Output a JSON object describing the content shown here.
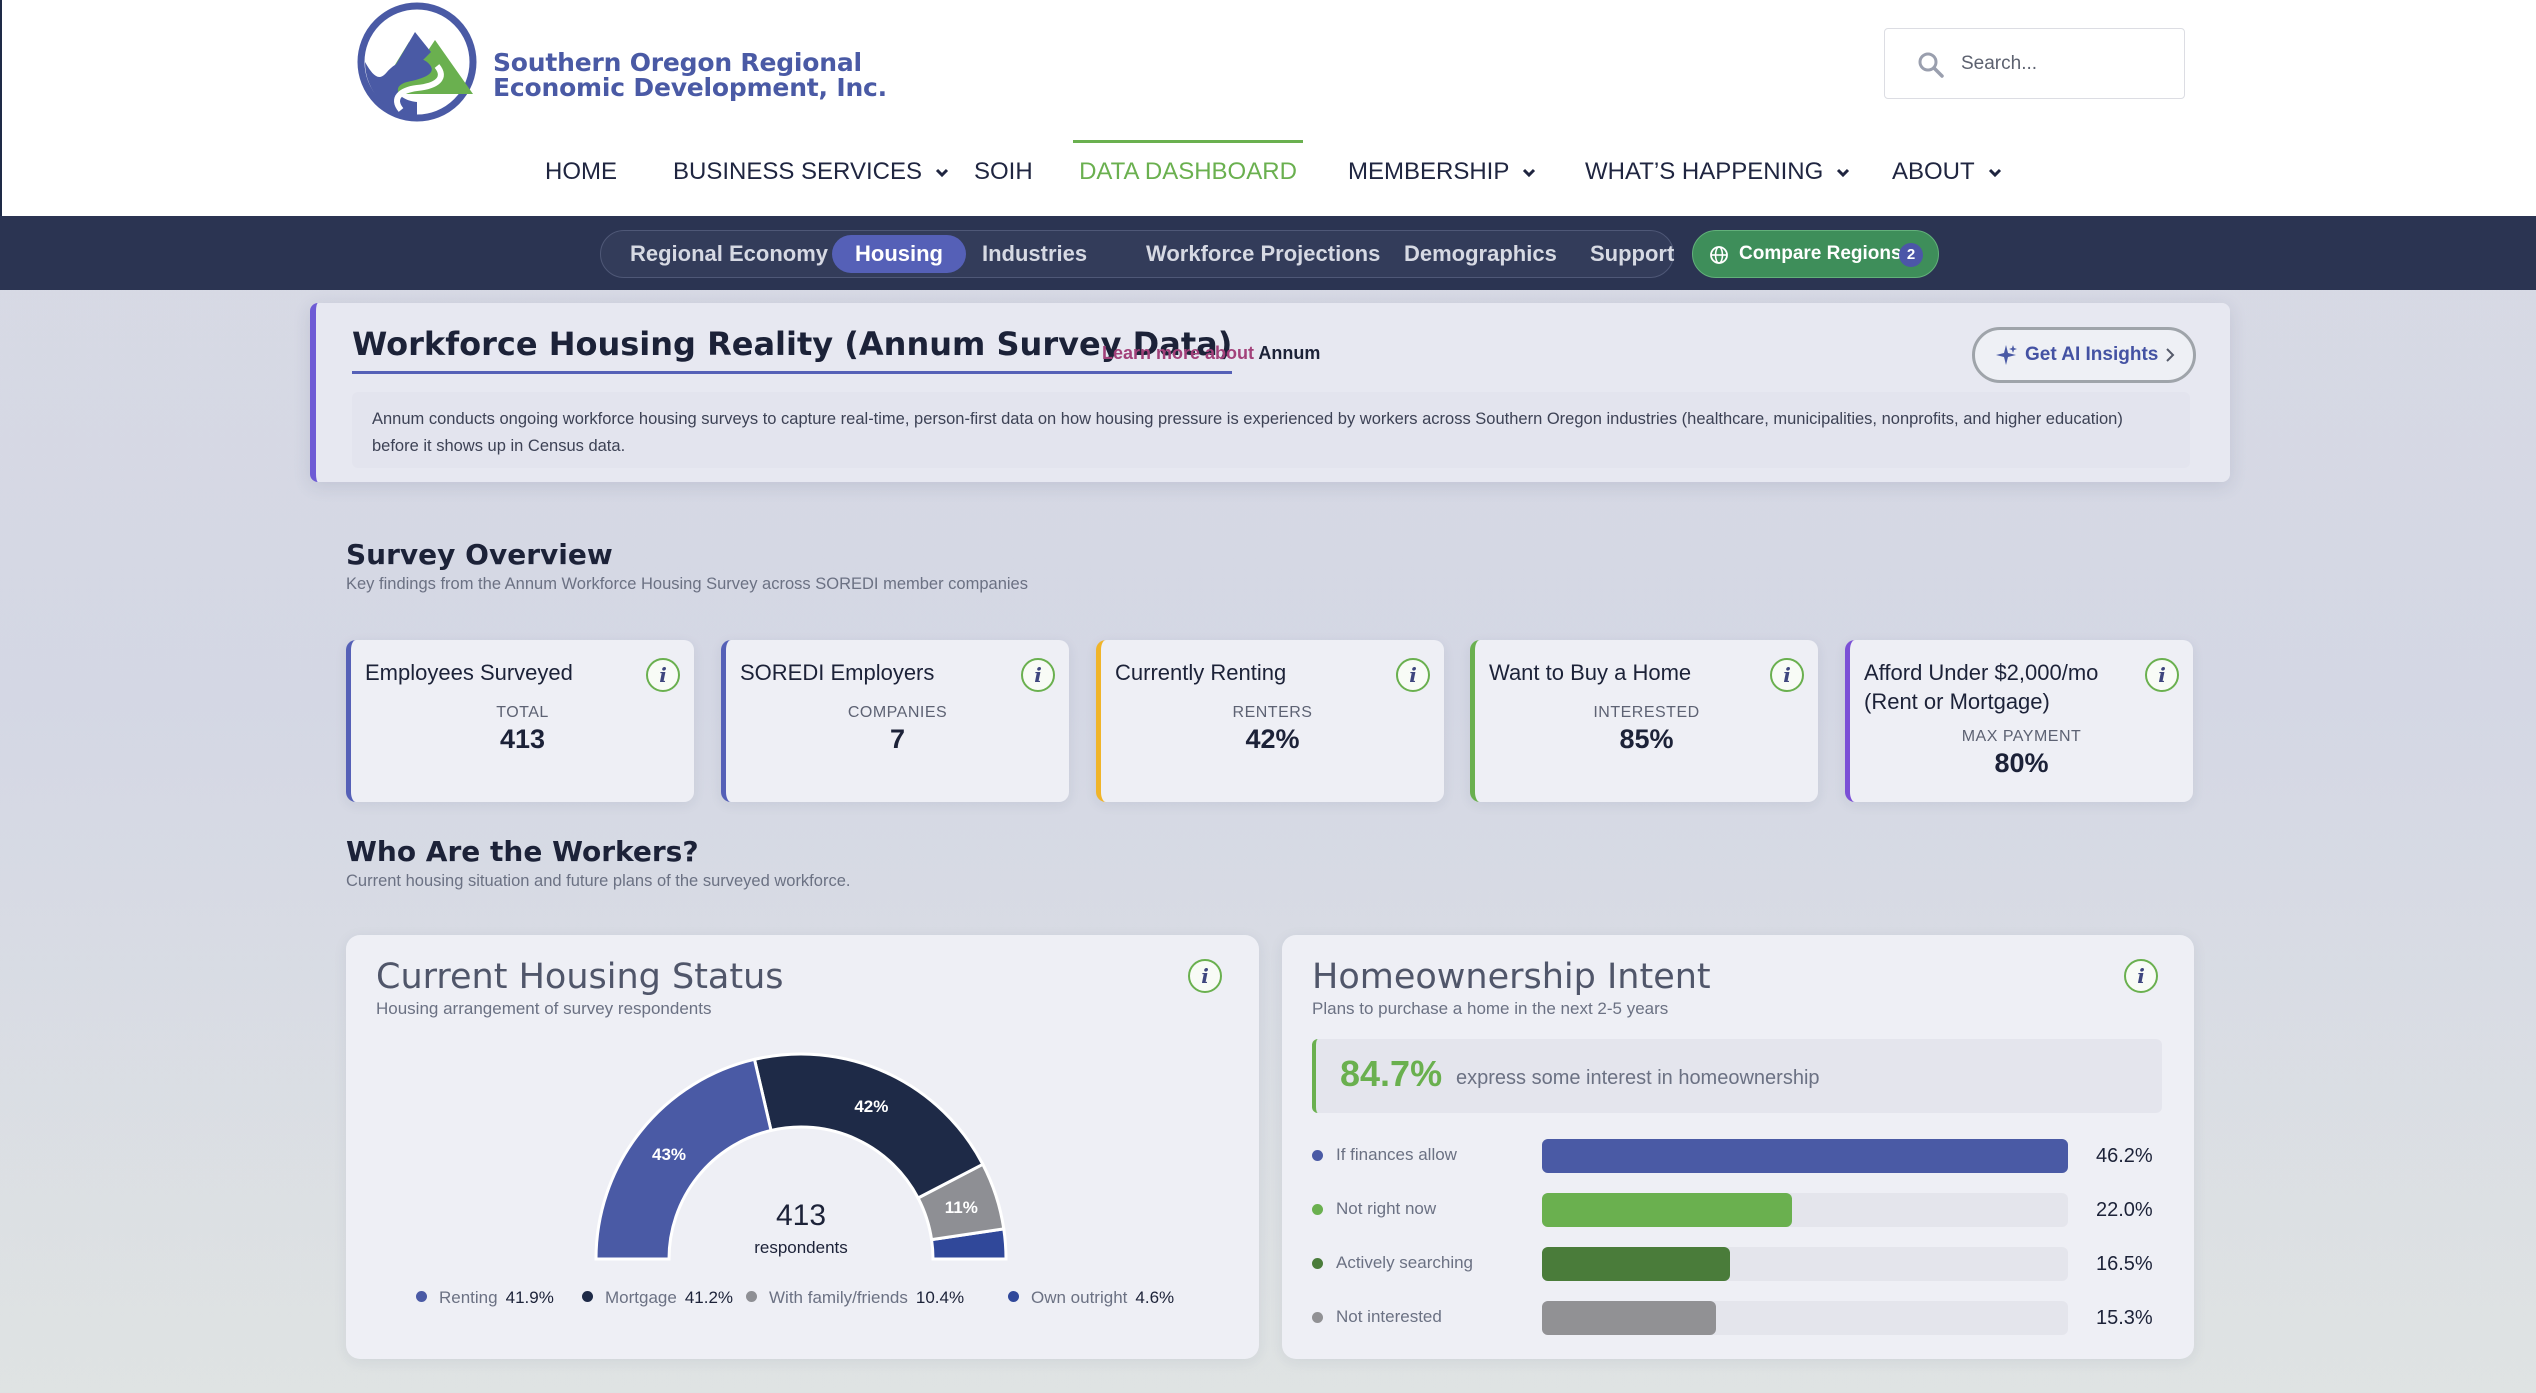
{
  "header": {
    "logo": {
      "line1": "Southern Oregon Regional",
      "line2": "Economic Development, Inc."
    },
    "search": {
      "placeholder": "Search..."
    },
    "nav": [
      {
        "label": "HOME",
        "dropdown": false
      },
      {
        "label": "BUSINESS SERVICES",
        "dropdown": true
      },
      {
        "label": "SOIH",
        "dropdown": false
      },
      {
        "label": "DATA DASHBOARD",
        "dropdown": false,
        "active": true
      },
      {
        "label": "MEMBERSHIP",
        "dropdown": true
      },
      {
        "label": "WHAT’S HAPPENING",
        "dropdown": true
      },
      {
        "label": "ABOUT",
        "dropdown": true
      }
    ]
  },
  "subnav": {
    "items": [
      "Regional Economy",
      "Housing",
      "Industries",
      "Workforce Projections",
      "Demographics",
      "Support"
    ],
    "active": "Housing",
    "compare": {
      "label": "Compare Regions",
      "count": "2"
    }
  },
  "banner": {
    "title": "Workforce Housing Reality (Annum Survey Data)",
    "learn_prefix": "Learn more about",
    "learn_strong": "Annum",
    "ai_button": "Get AI Insights",
    "description": "Annum conducts ongoing workforce housing surveys to capture real-time, person-first data on how housing pressure is experienced by workers across Southern Oregon industries (healthcare, municipalities, nonprofits, and higher education) before it shows up in Census data."
  },
  "overview": {
    "title": "Survey Overview",
    "subtitle": "Key findings from the Annum Workforce Housing Survey across SOREDI member companies",
    "cards": [
      {
        "label": "Employees Surveyed",
        "caption": "TOTAL",
        "value": "413",
        "accent": "#5560b7"
      },
      {
        "label": "SOREDI Employers",
        "caption": "COMPANIES",
        "value": "7",
        "accent": "#5560b7"
      },
      {
        "label": "Currently Renting",
        "caption": "RENTERS",
        "value": "42%",
        "accent": "#f0b429"
      },
      {
        "label": "Want to Buy a Home",
        "caption": "INTERESTED",
        "value": "85%",
        "accent": "#6ab04f"
      },
      {
        "label": "Afford Under $2,000/mo (Rent or Mortgage)",
        "caption": "MAX PAYMENT",
        "value": "80%",
        "accent": "#7b4fd6"
      }
    ]
  },
  "workers": {
    "title": "Who Are the Workers?",
    "subtitle": "Current housing situation and future plans of the surveyed workforce."
  },
  "chart_data": [
    {
      "type": "pie",
      "title": "Current Housing Status",
      "subtitle": "Housing arrangement of survey respondents",
      "center_value": "413",
      "center_label": "respondents",
      "slices": [
        {
          "name": "Renting",
          "value": 41.9,
          "label": "43%",
          "color": "#4a5aa5"
        },
        {
          "name": "Mortgage",
          "value": 41.2,
          "label": "42%",
          "color": "#1e2a47"
        },
        {
          "name": "With family/friends",
          "value": 10.4,
          "label": "11%",
          "color": "#8e8f94"
        },
        {
          "name": "Own outright",
          "value": 4.6,
          "label": "",
          "color": "#30489a"
        }
      ],
      "legend": [
        {
          "name": "Renting",
          "pct": "41.9%",
          "color": "#4a5aa5"
        },
        {
          "name": "Mortgage",
          "pct": "41.2%",
          "color": "#1e2a47"
        },
        {
          "name": "With family/friends",
          "pct": "10.4%",
          "color": "#8e8f94"
        },
        {
          "name": "Own outright",
          "pct": "4.6%",
          "color": "#30489a"
        }
      ]
    },
    {
      "type": "bar",
      "title": "Homeownership Intent",
      "subtitle": "Plans to purchase a home in the next 2-5 years",
      "highlight_value": "84.7%",
      "highlight_text": "express some interest in homeownership",
      "categories": [
        "If finances allow",
        "Not right now",
        "Actively searching",
        "Not interested"
      ],
      "values": [
        46.2,
        22.0,
        16.5,
        15.3
      ],
      "value_labels": [
        "46.2%",
        "22.0%",
        "16.5%",
        "15.3%"
      ],
      "colors": [
        "#4a5aa5",
        "#6ab04f",
        "#4a7c3a",
        "#919194"
      ],
      "max": 46.2
    }
  ]
}
